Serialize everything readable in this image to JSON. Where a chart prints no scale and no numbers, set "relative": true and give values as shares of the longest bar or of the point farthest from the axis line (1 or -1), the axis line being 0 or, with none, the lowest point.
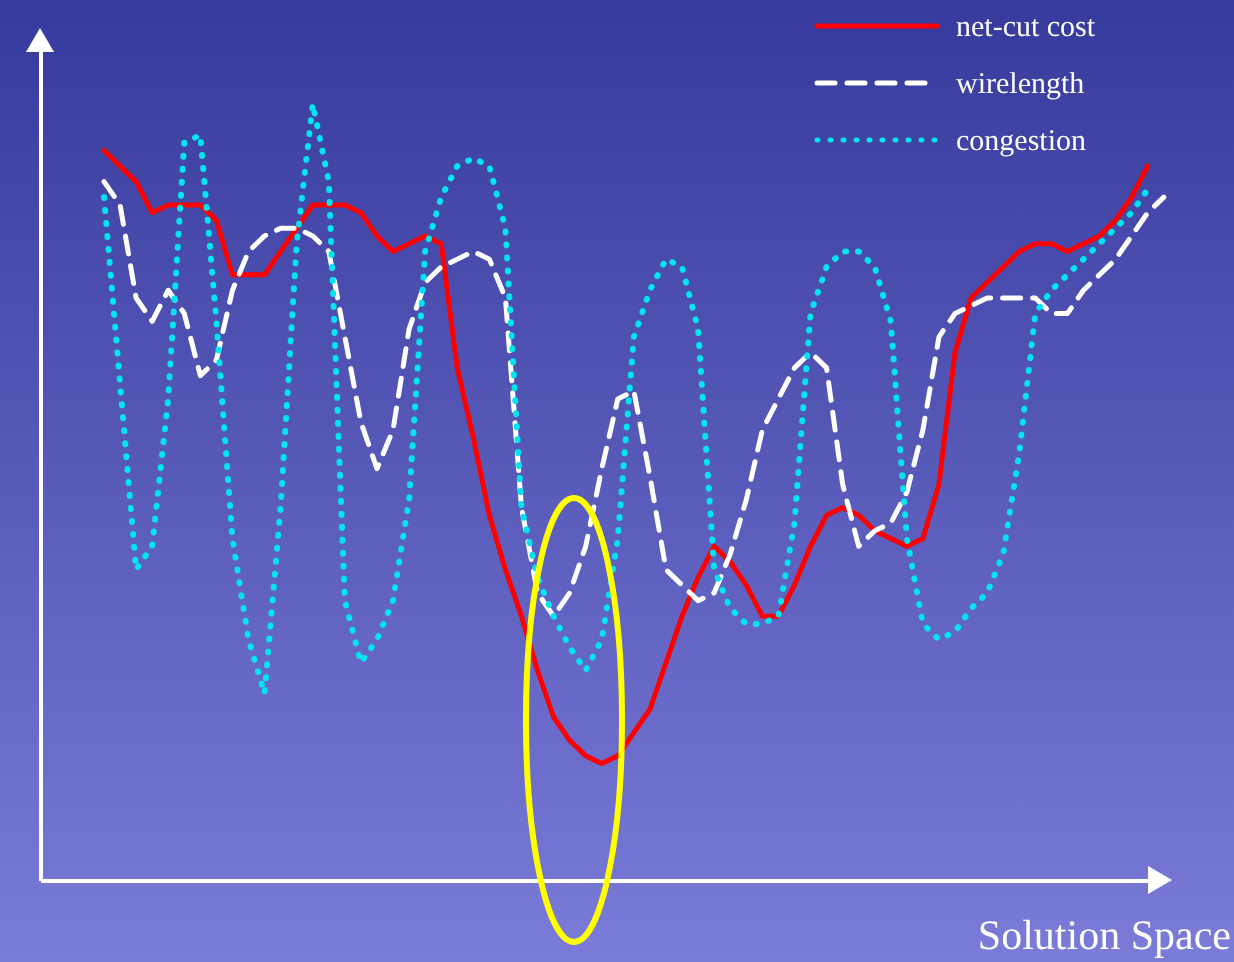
{
  "chart_data": {
    "type": "line",
    "xlabel": "Solution Space",
    "relative": true,
    "legend": "top right",
    "categories": [
      null,
      null,
      null,
      null,
      null,
      null,
      null,
      null,
      null,
      null,
      null,
      null,
      null,
      null,
      null,
      null,
      null,
      null,
      null,
      null,
      null,
      null,
      null,
      null,
      null,
      null,
      null,
      null,
      null,
      null,
      null,
      null,
      null,
      null,
      null,
      null,
      null,
      null,
      null,
      null,
      null,
      null,
      null,
      null,
      null,
      null,
      null,
      null,
      null,
      null,
      null,
      null,
      null,
      null,
      null,
      null,
      null,
      null,
      null,
      null,
      null,
      null,
      null,
      null,
      null,
      null,
      null
    ],
    "series": [
      {
        "name": "net-cut cost",
        "color": "#ff0000",
        "line_style": "solid",
        "values": [
          0.94,
          0.92,
          0.9,
          0.86,
          0.87,
          0.87,
          0.87,
          0.85,
          0.78,
          0.78,
          0.78,
          0.81,
          0.84,
          0.87,
          0.87,
          0.87,
          0.86,
          0.83,
          0.81,
          0.82,
          0.83,
          0.82,
          0.66,
          0.57,
          0.47,
          0.4,
          0.34,
          0.27,
          0.21,
          0.18,
          0.16,
          0.15,
          0.16,
          0.19,
          0.22,
          0.28,
          0.34,
          0.39,
          0.43,
          0.41,
          0.38,
          0.34,
          0.34,
          0.38,
          0.43,
          0.47,
          0.48,
          0.47,
          0.45,
          0.44,
          0.43,
          0.44,
          0.51,
          0.68,
          0.75,
          0.77,
          0.79,
          0.81,
          0.82,
          0.82,
          0.81,
          0.82,
          0.83,
          0.85,
          0.88,
          0.92,
          null
        ]
      },
      {
        "name": "wirelength",
        "color": "#ffffff",
        "line_style": "dashed",
        "values": [
          0.9,
          0.87,
          0.75,
          0.72,
          0.76,
          0.73,
          0.65,
          0.67,
          0.76,
          0.81,
          0.83,
          0.84,
          0.84,
          0.83,
          0.81,
          0.7,
          0.59,
          0.53,
          0.58,
          0.71,
          0.77,
          0.79,
          0.8,
          0.81,
          0.8,
          0.75,
          0.48,
          0.37,
          0.34,
          0.37,
          0.43,
          0.53,
          0.62,
          0.63,
          0.52,
          0.4,
          0.38,
          0.36,
          0.37,
          0.42,
          0.49,
          0.58,
          0.62,
          0.66,
          0.68,
          0.66,
          0.51,
          0.43,
          0.45,
          0.46,
          0.5,
          0.58,
          0.7,
          0.73,
          0.74,
          0.75,
          0.75,
          0.75,
          0.75,
          0.73,
          0.73,
          0.76,
          0.78,
          0.8,
          0.83,
          0.86,
          0.88
        ]
      },
      {
        "name": "congestion",
        "color": "#00e5ee",
        "line_style": "dotted",
        "values": [
          0.88,
          0.64,
          0.4,
          0.43,
          0.62,
          0.95,
          0.96,
          0.72,
          0.44,
          0.31,
          0.24,
          0.48,
          0.82,
          1,
          0.9,
          0.36,
          0.28,
          0.31,
          0.36,
          0.49,
          0.81,
          0.88,
          0.92,
          0.93,
          0.92,
          0.84,
          0.48,
          0.39,
          0.34,
          0.3,
          0.27,
          0.31,
          0.44,
          0.7,
          0.76,
          0.8,
          0.79,
          0.71,
          0.4,
          0.35,
          0.33,
          0.33,
          0.34,
          0.46,
          0.73,
          0.79,
          0.81,
          0.81,
          0.79,
          0.72,
          0.44,
          0.33,
          0.31,
          0.32,
          0.35,
          0.37,
          0.42,
          0.55,
          0.73,
          0.76,
          0.78,
          0.8,
          0.82,
          0.84,
          0.86,
          0.89,
          null
        ]
      }
    ]
  }
}
